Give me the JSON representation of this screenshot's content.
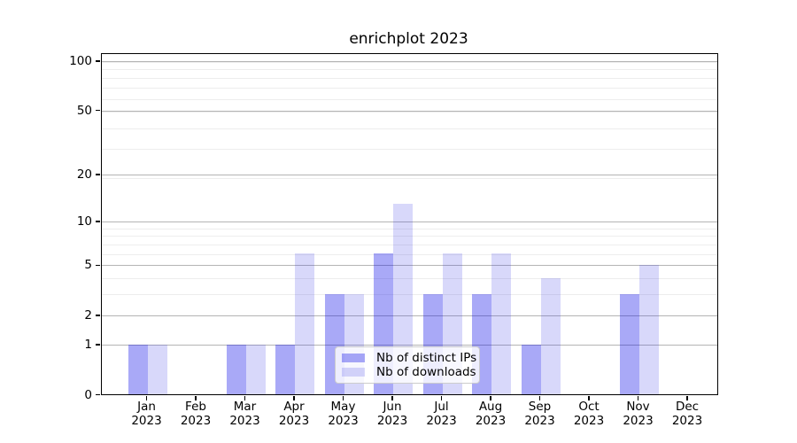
{
  "chart_data": {
    "type": "bar",
    "title": "enrichplot 2023",
    "x_categories": [
      "Jan\n2023",
      "Feb\n2023",
      "Mar\n2023",
      "Apr\n2023",
      "May\n2023",
      "Jun\n2023",
      "Jul\n2023",
      "Aug\n2023",
      "Sep\n2023",
      "Oct\n2023",
      "Nov\n2023",
      "Dec\n2023"
    ],
    "series": [
      {
        "name": "Nb of distinct IPs",
        "color": "#a9aaf7",
        "fill": "rgba(10, 10, 232, 0.35)",
        "values": [
          1,
          0,
          1,
          1,
          3,
          6,
          3,
          3,
          1,
          0,
          3,
          0
        ]
      },
      {
        "name": "Nb of downloads",
        "color": "#d8d9fa",
        "fill": "rgba(60, 60, 230, 0.20)",
        "values": [
          1,
          0,
          1,
          6,
          3,
          13,
          6,
          6,
          4,
          0,
          5,
          0
        ]
      }
    ],
    "xlabel": "",
    "ylabel": "",
    "y_scale": "log1p",
    "ylim": [
      0,
      112.5
    ],
    "yticks": [
      0,
      1,
      2,
      5,
      10,
      20,
      50,
      100
    ],
    "minor_gridlines": [
      3,
      4,
      6,
      7,
      8,
      9,
      19,
      29,
      39,
      49,
      59,
      69,
      79,
      89,
      99
    ],
    "grid": true,
    "legend_position": "lower center"
  },
  "colors": {
    "major_grid": "#b4b4b4",
    "minor_grid": "#ededed",
    "spine": "#000000",
    "legend_border": "#cccccc",
    "background": "#ffffff"
  }
}
